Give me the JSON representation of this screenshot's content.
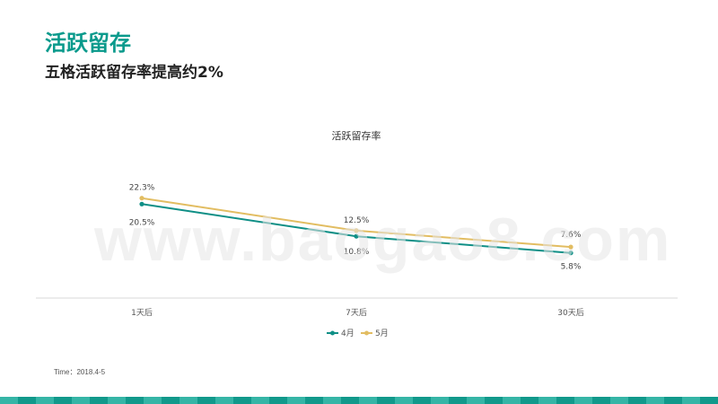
{
  "header": {
    "title": "活跃留存",
    "subtitle": "五格活跃留存率提高约2%"
  },
  "colors": {
    "accent": "#0a9a8c",
    "series_april": "#0f8f86",
    "series_may": "#e2bd62",
    "axis": "#d9d9d9",
    "bar_light": "#35b5a6",
    "bar_dark": "#11998b"
  },
  "watermark": "www.baogao8.com",
  "footnote": "Time：2018.4-5",
  "chart_data": {
    "type": "line",
    "title": "活跃留存率",
    "categories": [
      "1天后",
      "7天后",
      "30天后"
    ],
    "series": [
      {
        "name": "4月",
        "values": [
          20.5,
          10.8,
          5.8
        ],
        "labels": [
          "20.5%",
          "10.8%",
          "5.8%"
        ],
        "color": "#0f8f86"
      },
      {
        "name": "5月",
        "values": [
          22.3,
          12.5,
          7.6
        ],
        "labels": [
          "22.3%",
          "12.5%",
          "7.6%"
        ],
        "color": "#e2bd62"
      }
    ],
    "xlabel": "",
    "ylabel": "",
    "legend_position": "bottom",
    "grid": false
  }
}
